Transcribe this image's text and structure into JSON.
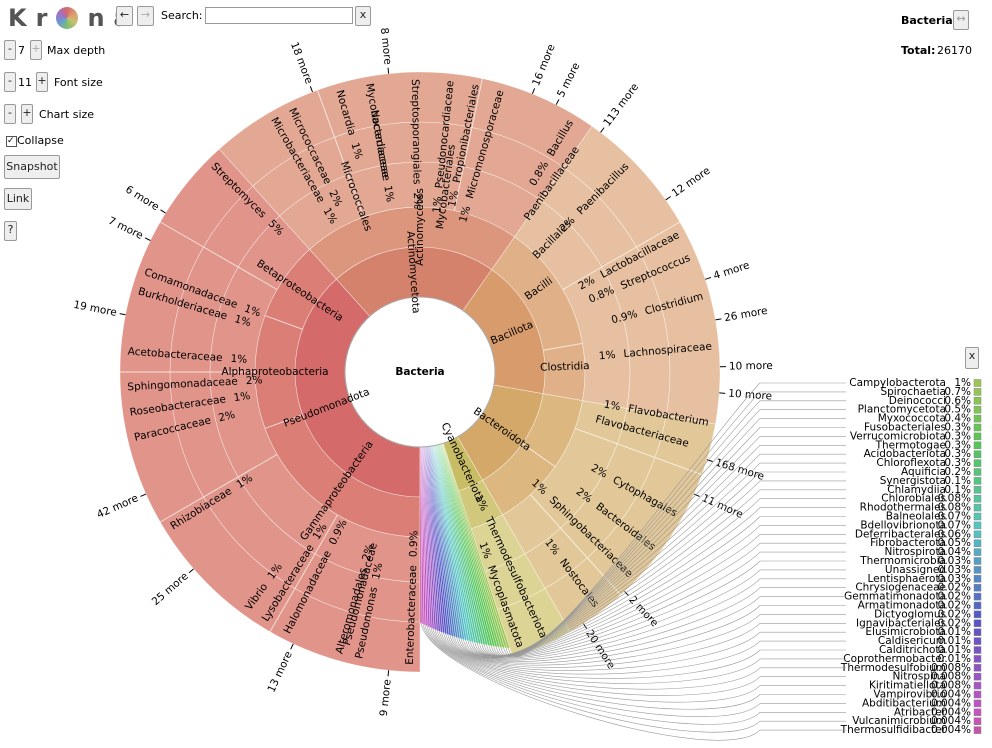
{
  "toolbar": {
    "logo_left": "Kr",
    "logo_right": "na",
    "back": "←",
    "forward": "→",
    "search_label": "Search:",
    "clear": "x",
    "max_depth_minus": "-",
    "max_depth": "7",
    "max_depth_plus": "+",
    "max_depth_label": "Max depth",
    "font_minus": "-",
    "font_size": "11",
    "font_plus": "+",
    "font_size_label": "Font size",
    "chart_minus": "-",
    "chart_plus": "+",
    "chart_size_label": "Chart size",
    "collapse_label": "Collapse",
    "snapshot": "Snapshot",
    "link": "Link",
    "help": "?"
  },
  "details": {
    "name": "Bacteria",
    "swap": "↔",
    "total_label": "Total:",
    "total": "26170"
  },
  "center": "Bacteria",
  "phyla": [
    {
      "label": "Pseudomonadota"
    },
    {
      "label": "Actinomycetota"
    },
    {
      "label": "Bacillota"
    },
    {
      "label": "Bacteroidota"
    },
    {
      "label": "Cyanobacteriota"
    }
  ],
  "inner_labels": [
    {
      "label": "Gammaproteobacteria"
    },
    {
      "label": "Alphaproteobacteria"
    },
    {
      "label": "Betaproteobacteria"
    },
    {
      "label": "Actinomycetes"
    },
    {
      "label": "Bacilli"
    },
    {
      "label": "Clostridia"
    },
    {
      "label": "Micrococcales"
    },
    {
      "label": "Mycobacteriales"
    },
    {
      "label": "Bacillales"
    },
    {
      "label": "Flavobacteriaceae"
    },
    {
      "label": "Nocardiaceae"
    },
    {
      "label": "Pseudomonadaceae"
    },
    {
      "label": "Paenibacillaceae"
    }
  ],
  "leaves": [
    {
      "label": "Streptomyces",
      "percent": "5%"
    },
    {
      "label": "6 more"
    },
    {
      "label": "7 more"
    },
    {
      "label": "Comamonadaceae",
      "percent": "1%"
    },
    {
      "label": "Burkholderiaceae",
      "percent": "1%"
    },
    {
      "label": "19 more"
    },
    {
      "label": "Acetobacteraceae",
      "percent": "1%"
    },
    {
      "label": "Sphingomonadaceae",
      "percent": "2%"
    },
    {
      "label": "Roseobacteraceae",
      "percent": "1%"
    },
    {
      "label": "Paracoccaceae",
      "percent": "2%"
    },
    {
      "label": "42 more"
    },
    {
      "label": "Rhizobiaceae",
      "percent": "1%"
    },
    {
      "label": "25 more"
    },
    {
      "label": "Vibrio",
      "percent": "1%"
    },
    {
      "label": "Lysobacteraceae",
      "percent": "1%"
    },
    {
      "label": "13 more"
    },
    {
      "label": "Halomonadaceae",
      "percent": "0.9%"
    },
    {
      "label": "Alteromonadales",
      "percent": "2%"
    },
    {
      "label": "Pseudomonas",
      "percent": "1%"
    },
    {
      "label": "9 more"
    },
    {
      "label": "Enterobacteraceae",
      "percent": "0.9%"
    },
    {
      "label": "Microbacteriaceae",
      "percent": "1%"
    },
    {
      "label": "Micrococcaceae",
      "percent": "2%"
    },
    {
      "label": "18 more"
    },
    {
      "label": "Nocardia",
      "percent": "1%"
    },
    {
      "label": "Mycobacteriaceae",
      "percent": "1%"
    },
    {
      "label": "8 more"
    },
    {
      "label": "Streptosporangiales",
      "percent": "2%"
    },
    {
      "label": "Pseudonocardiaceae",
      "percent": "1%"
    },
    {
      "label": "Propionibacteriales",
      "percent": "1%"
    },
    {
      "label": "Micromonosporaceae",
      "percent": "1%"
    },
    {
      "label": "16 more"
    },
    {
      "label": "5 more"
    },
    {
      "label": "Bacillus",
      "percent": "0.8%"
    },
    {
      "label": "113 more"
    },
    {
      "label": "Paenibacillus",
      "percent": "2%"
    },
    {
      "label": "12 more"
    },
    {
      "label": "Lactobacillaceae",
      "percent": "2%"
    },
    {
      "label": "Streptococcus",
      "percent": "0.8%"
    },
    {
      "label": "4 more"
    },
    {
      "label": "Clostridium",
      "percent": "0.9%"
    },
    {
      "label": "26 more"
    },
    {
      "label": "Lachnospiraceae",
      "percent": "1%"
    },
    {
      "label": "10 more"
    },
    {
      "label": "10 more"
    },
    {
      "label": "Flavobacterium",
      "percent": "1%"
    },
    {
      "label": "168 more"
    },
    {
      "label": "11 more"
    },
    {
      "label": "Cytophagales",
      "percent": "2%"
    },
    {
      "label": "Bacteroidales",
      "percent": "2%"
    },
    {
      "label": "Sphingobacteriaceae",
      "percent": "1%"
    },
    {
      "label": "2 more"
    },
    {
      "label": "Nostocales",
      "percent": "1%"
    },
    {
      "label": "20 more"
    },
    {
      "label": "Thermodesulfobacteriota",
      "percent": "1%"
    },
    {
      "label": "Mycoplasmatota",
      "percent": "1%"
    }
  ],
  "legend_close": "x",
  "legend": [
    {
      "label": "Campylobacterota",
      "percent": "1%"
    },
    {
      "label": "Spirochaetia",
      "percent": "0.7%"
    },
    {
      "label": "Deinococci",
      "percent": "0.6%"
    },
    {
      "label": "Planctomycetota",
      "percent": "0.5%"
    },
    {
      "label": "Myxococcota",
      "percent": "0.4%"
    },
    {
      "label": "Fusobacteriales",
      "percent": "0.3%"
    },
    {
      "label": "Verrucomicrobiota",
      "percent": "0.3%"
    },
    {
      "label": "Thermotogae",
      "percent": "0.3%"
    },
    {
      "label": "Acidobacteriota",
      "percent": "0.3%"
    },
    {
      "label": "Chloroflexota",
      "percent": "0.3%"
    },
    {
      "label": "Aquificia",
      "percent": "0.2%"
    },
    {
      "label": "Synergistota",
      "percent": "0.1%"
    },
    {
      "label": "Chlamydiia",
      "percent": "0.1%"
    },
    {
      "label": "Chlorobiales",
      "percent": "0.08%"
    },
    {
      "label": "Rhodothermales",
      "percent": "0.08%"
    },
    {
      "label": "Balneolales",
      "percent": "0.07%"
    },
    {
      "label": "Bdellovibrionota",
      "percent": "0.07%"
    },
    {
      "label": "Deferribacterales",
      "percent": "0.06%"
    },
    {
      "label": "Fibrobacterota",
      "percent": "0.05%"
    },
    {
      "label": "Nitrospirota",
      "percent": "0.04%"
    },
    {
      "label": "Thermomicrobia",
      "percent": "0.03%"
    },
    {
      "label": "Unassigned",
      "percent": "0.03%"
    },
    {
      "label": "Lentisphaerota",
      "percent": "0.03%"
    },
    {
      "label": "Chrysiogenaceae",
      "percent": "0.02%"
    },
    {
      "label": "Gemmatimonadota",
      "percent": "0.02%"
    },
    {
      "label": "Armatimonadota",
      "percent": "0.02%"
    },
    {
      "label": "Dictyoglomus",
      "percent": "0.02%"
    },
    {
      "label": "Ignavibacteriales",
      "percent": "0.02%"
    },
    {
      "label": "Elusimicrobiota",
      "percent": "0.01%"
    },
    {
      "label": "Caldisericum",
      "percent": "0.01%"
    },
    {
      "label": "Calditrichota",
      "percent": "0.01%"
    },
    {
      "label": "Coprothermobacter",
      "percent": "0.01%"
    },
    {
      "label": "Thermodesulfobium",
      "percent": "0.008%"
    },
    {
      "label": "Nitrospina",
      "percent": "0.008%"
    },
    {
      "label": "Kiritimatiellota",
      "percent": "0.008%"
    },
    {
      "label": "Vampirovibrio",
      "percent": "0.004%"
    },
    {
      "label": "Abditibacterium",
      "percent": "0.004%"
    },
    {
      "label": "Atribacter",
      "percent": "0.004%"
    },
    {
      "label": "Vulcanimicrobium",
      "percent": "0.004%"
    },
    {
      "label": "Thermosulfidibacter",
      "percent": "0.004%"
    }
  ]
}
